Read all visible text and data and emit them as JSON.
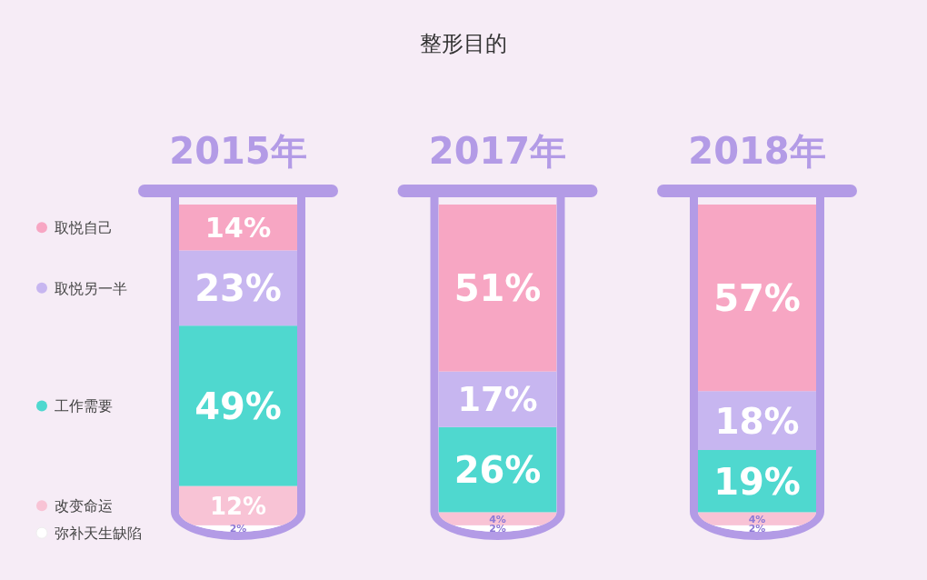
{
  "chart_data": {
    "type": "bar",
    "title": "整形目的",
    "stacked": true,
    "legend": "left",
    "categories": [
      "2015年",
      "2017年",
      "2018年"
    ],
    "series": [
      {
        "name": "弥补天生缺陷",
        "color": "#ffffff",
        "values": [
          2,
          2,
          2
        ],
        "value_labels": [
          "2%",
          "2%",
          "2%"
        ]
      },
      {
        "name": "改变命运",
        "color": "#f8c3d5",
        "values": [
          12,
          4,
          4
        ],
        "value_labels": [
          "12%",
          "4%",
          "4%"
        ]
      },
      {
        "name": "工作需要",
        "color": "#4fd8cf",
        "values": [
          49,
          26,
          19
        ],
        "value_labels": [
          "49%",
          "26%",
          "19%"
        ]
      },
      {
        "name": "取悦另一半",
        "color": "#c7b6f0",
        "values": [
          23,
          17,
          18
        ],
        "value_labels": [
          "23%",
          "17%",
          "18%"
        ]
      },
      {
        "name": "取悦自己",
        "color": "#f7a6c3",
        "values": [
          14,
          51,
          57
        ],
        "value_labels": [
          "14%",
          "51%",
          "57%"
        ]
      }
    ]
  }
}
